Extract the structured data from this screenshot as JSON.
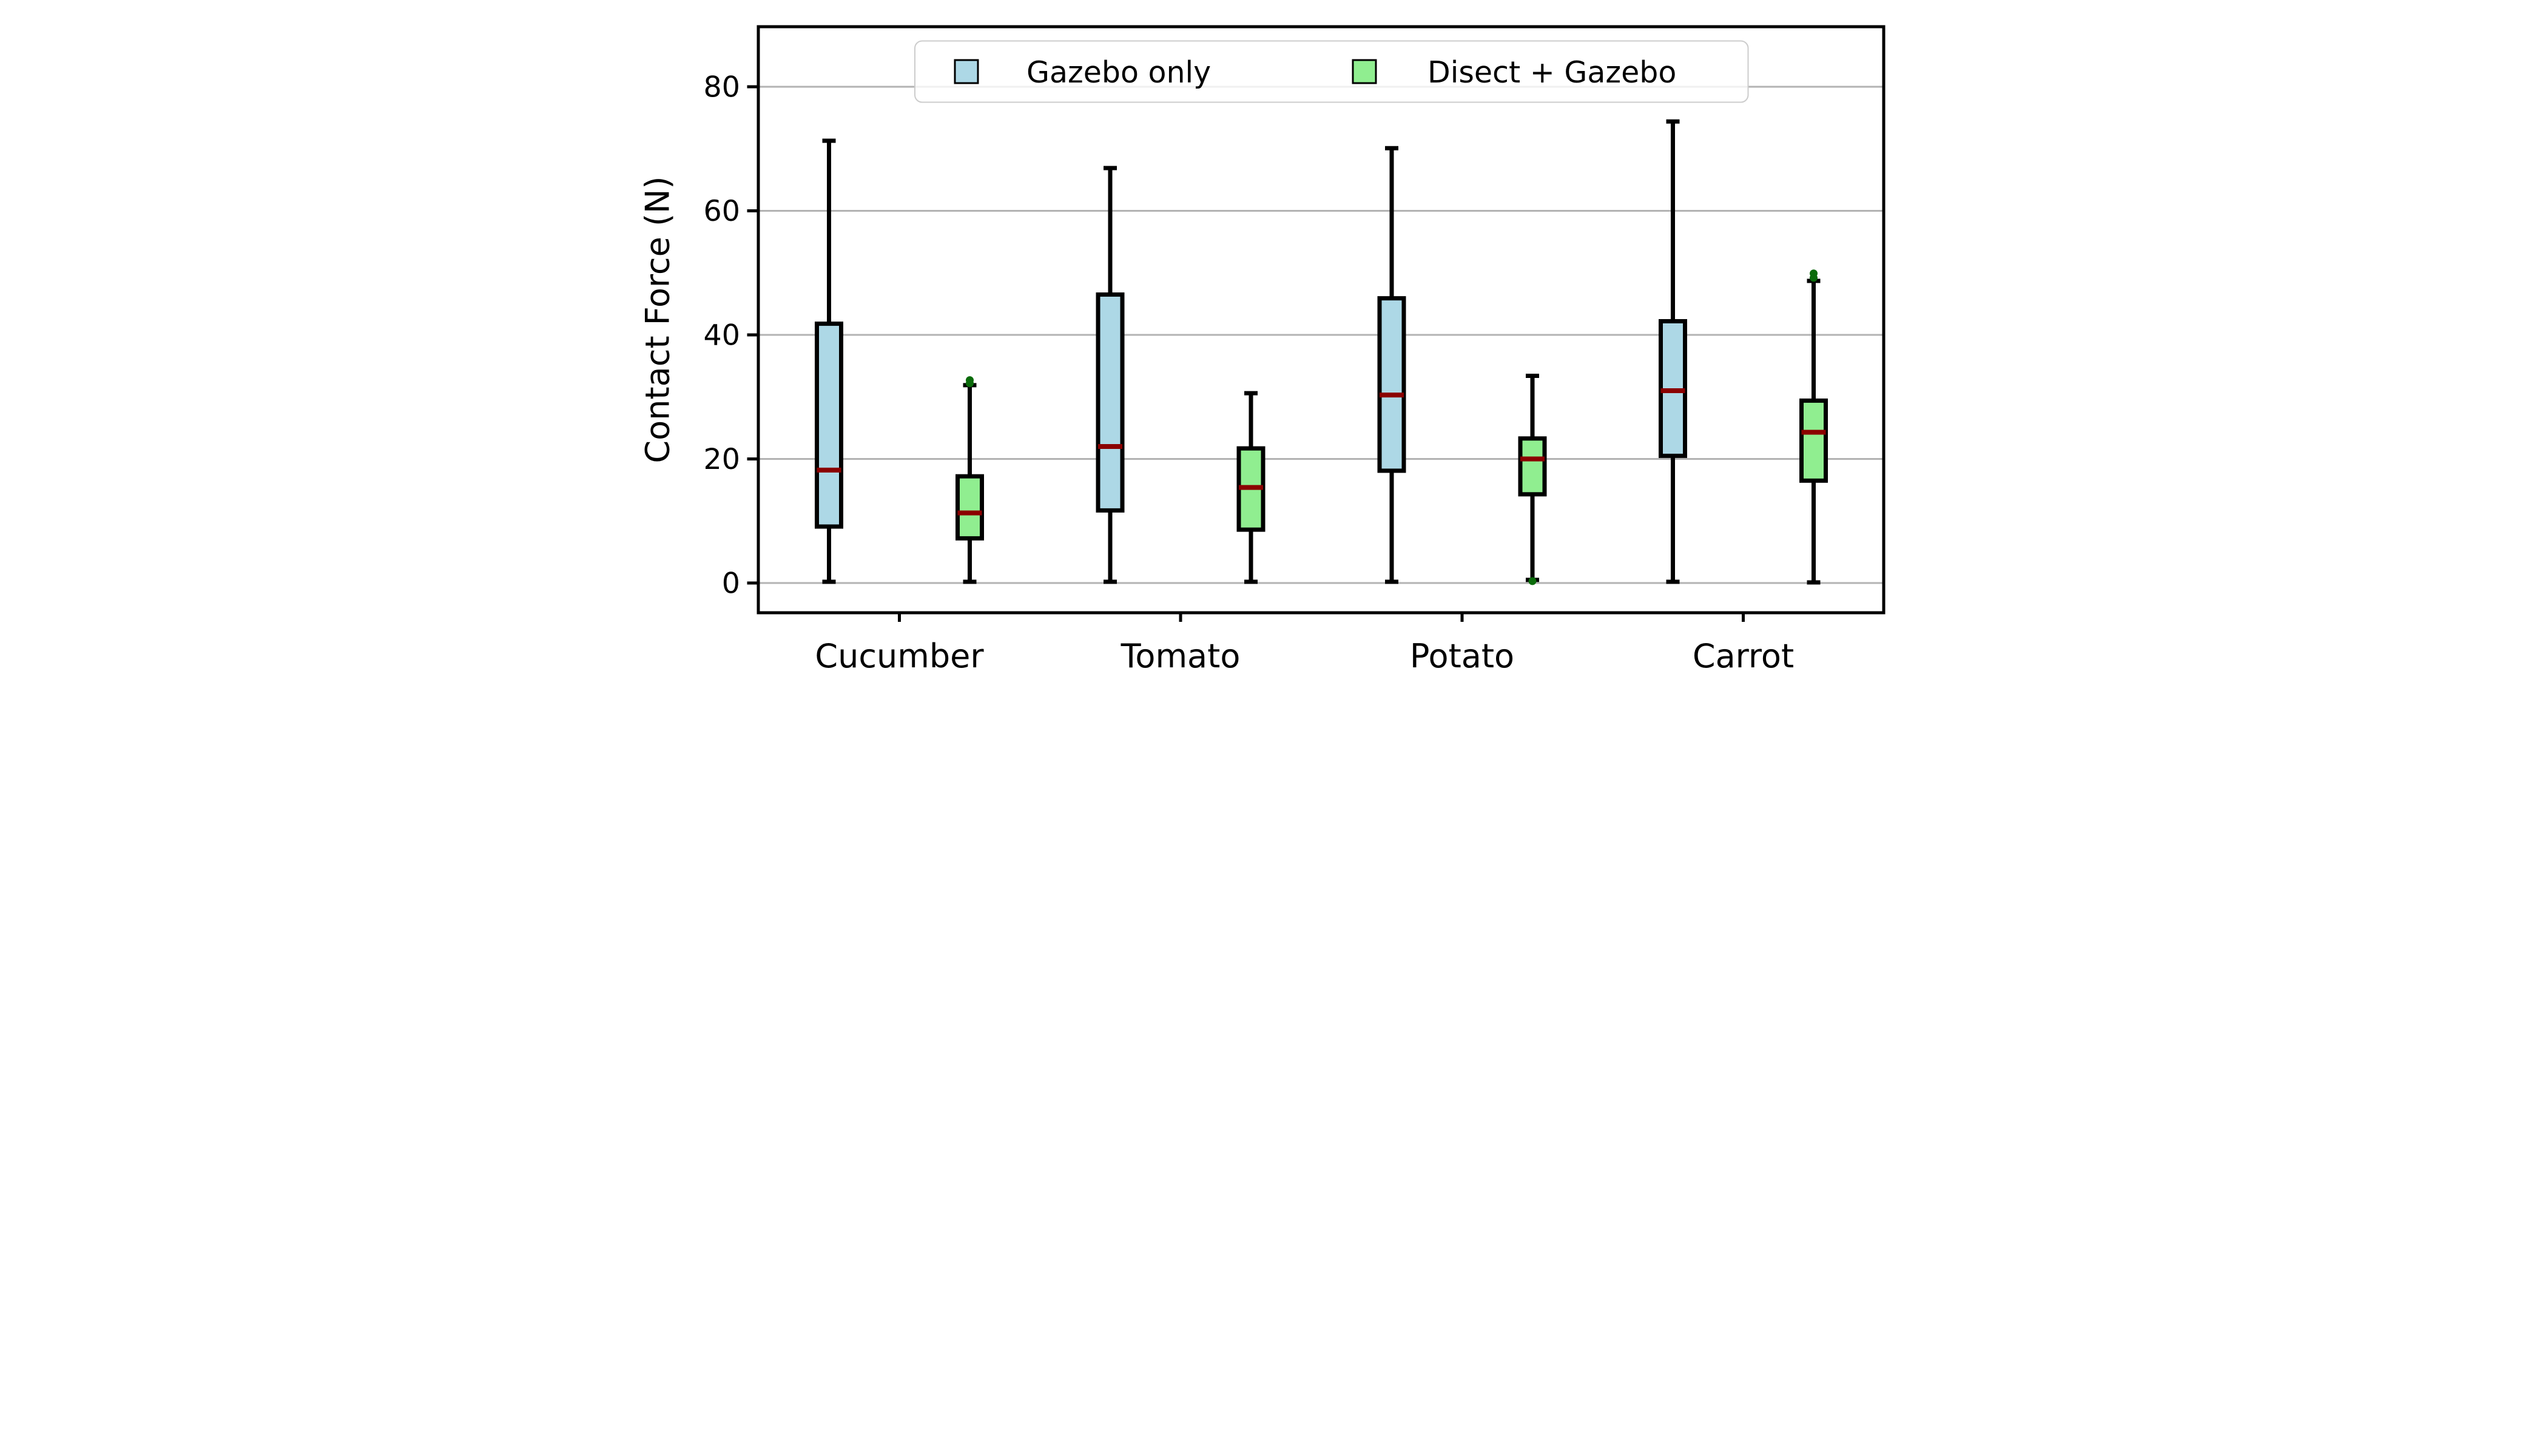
{
  "chart_data": {
    "type": "boxplot",
    "title": "",
    "ylabel": "Contact Force (N)",
    "xlabel": "",
    "categories": [
      "Cucumber",
      "Tomato",
      "Potato",
      "Carrot"
    ],
    "yticks": [
      0,
      20,
      40,
      60,
      80
    ],
    "ylim": [
      -5,
      90
    ],
    "grid": "horizontal",
    "legend_position": "top-center",
    "colors": {
      "series_blue": "#ADD8E6",
      "series_green": "#90EE90",
      "median": "#8B0000",
      "flier": "#0A6B0A",
      "box_edge": "#000000",
      "grid": "#B3B3B3",
      "axis": "#000000",
      "legend_border": "#CCCCCC"
    },
    "series": [
      {
        "name": "Gazebo only",
        "color": "#ADD8E6",
        "boxes": [
          {
            "category": "Cucumber",
            "whislo": 0.2,
            "q1": 9.1,
            "med": 18.2,
            "q3": 41.8,
            "whishi": 71.3,
            "fliers": []
          },
          {
            "category": "Tomato",
            "whislo": 0.2,
            "q1": 11.7,
            "med": 22.0,
            "q3": 46.5,
            "whishi": 66.9,
            "fliers": []
          },
          {
            "category": "Potato",
            "whislo": 0.2,
            "q1": 18.1,
            "med": 30.3,
            "q3": 45.9,
            "whishi": 70.1,
            "fliers": []
          },
          {
            "category": "Carrot",
            "whislo": 0.2,
            "q1": 20.5,
            "med": 31.0,
            "q3": 42.2,
            "whishi": 74.4,
            "fliers": []
          }
        ]
      },
      {
        "name": "Disect + Gazebo",
        "color": "#90EE90",
        "boxes": [
          {
            "category": "Cucumber",
            "whislo": 0.2,
            "q1": 7.2,
            "med": 11.3,
            "q3": 17.2,
            "whishi": 31.9,
            "fliers": [
              32.2,
              32.7
            ]
          },
          {
            "category": "Tomato",
            "whislo": 0.2,
            "q1": 8.6,
            "med": 15.4,
            "q3": 21.7,
            "whishi": 30.6,
            "fliers": []
          },
          {
            "category": "Potato",
            "whislo": 0.5,
            "q1": 14.3,
            "med": 20.0,
            "q3": 23.3,
            "whishi": 33.4,
            "fliers": [
              0.3
            ]
          },
          {
            "category": "Carrot",
            "whislo": 0.1,
            "q1": 16.5,
            "med": 24.3,
            "q3": 29.4,
            "whishi": 48.7,
            "fliers": [
              49.2,
              49.9
            ]
          }
        ]
      }
    ]
  }
}
